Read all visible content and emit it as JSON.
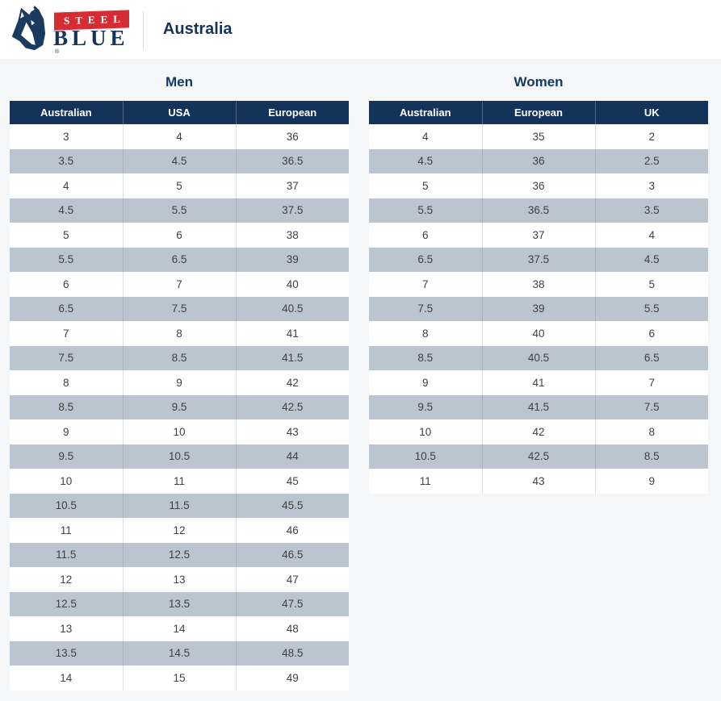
{
  "colors": {
    "navy": "#14335b",
    "title_navy": "#133a63",
    "stripe": "#bac5cf",
    "page_bg": "#f5f6f8",
    "banner_red": "#d42d33",
    "cell_text": "#3f4142"
  },
  "header": {
    "logo": {
      "steel": "STEEL",
      "blue": "BLUE",
      "registered": "®"
    },
    "region": "Australia"
  },
  "tables": [
    {
      "id": "men",
      "title": "Men",
      "columns": [
        "Australian",
        "USA",
        "European"
      ],
      "rows": [
        [
          "3",
          "4",
          "36"
        ],
        [
          "3.5",
          "4.5",
          "36.5"
        ],
        [
          "4",
          "5",
          "37"
        ],
        [
          "4.5",
          "5.5",
          "37.5"
        ],
        [
          "5",
          "6",
          "38"
        ],
        [
          "5.5",
          "6.5",
          "39"
        ],
        [
          "6",
          "7",
          "40"
        ],
        [
          "6.5",
          "7.5",
          "40.5"
        ],
        [
          "7",
          "8",
          "41"
        ],
        [
          "7.5",
          "8.5",
          "41.5"
        ],
        [
          "8",
          "9",
          "42"
        ],
        [
          "8.5",
          "9.5",
          "42.5"
        ],
        [
          "9",
          "10",
          "43"
        ],
        [
          "9.5",
          "10.5",
          "44"
        ],
        [
          "10",
          "11",
          "45"
        ],
        [
          "10.5",
          "11.5",
          "45.5"
        ],
        [
          "11",
          "12",
          "46"
        ],
        [
          "11.5",
          "12.5",
          "46.5"
        ],
        [
          "12",
          "13",
          "47"
        ],
        [
          "12.5",
          "13.5",
          "47.5"
        ],
        [
          "13",
          "14",
          "48"
        ],
        [
          "13.5",
          "14.5",
          "48.5"
        ],
        [
          "14",
          "15",
          "49"
        ]
      ]
    },
    {
      "id": "women",
      "title": "Women",
      "columns": [
        "Australian",
        "European",
        "UK"
      ],
      "rows": [
        [
          "4",
          "35",
          "2"
        ],
        [
          "4.5",
          "36",
          "2.5"
        ],
        [
          "5",
          "36",
          "3"
        ],
        [
          "5.5",
          "36.5",
          "3.5"
        ],
        [
          "6",
          "37",
          "4"
        ],
        [
          "6.5",
          "37.5",
          "4.5"
        ],
        [
          "7",
          "38",
          "5"
        ],
        [
          "7.5",
          "39",
          "5.5"
        ],
        [
          "8",
          "40",
          "6"
        ],
        [
          "8.5",
          "40.5",
          "6.5"
        ],
        [
          "9",
          "41",
          "7"
        ],
        [
          "9.5",
          "41.5",
          "7.5"
        ],
        [
          "10",
          "42",
          "8"
        ],
        [
          "10.5",
          "42.5",
          "8.5"
        ],
        [
          "11",
          "43",
          "9"
        ]
      ]
    }
  ]
}
